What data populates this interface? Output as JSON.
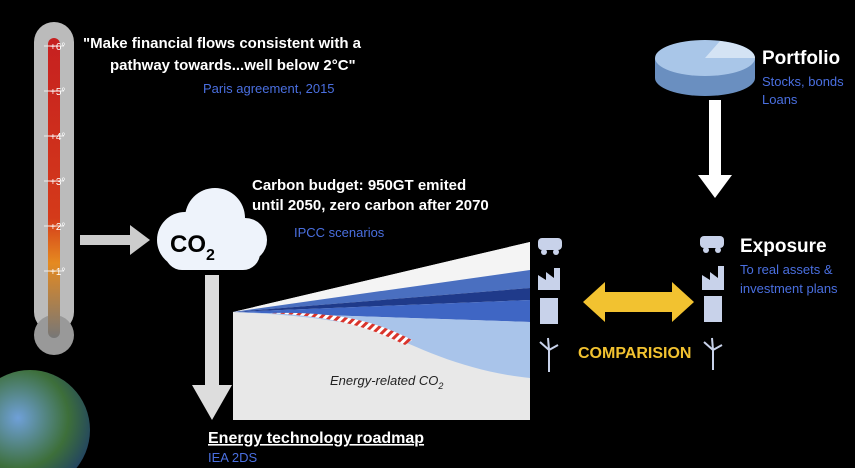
{
  "quote": {
    "lines": [
      "\"Make  financial flows consistent with a",
      "pathway towards...well below 2°C\""
    ],
    "source": "Paris agreement, 2015"
  },
  "thermometer": {
    "ticks": [
      "+6°",
      "+5°",
      "+4°",
      "+3°",
      "+2°",
      "+1°"
    ]
  },
  "carbon_budget": {
    "lines": [
      "Carbon budget: 950GT emited",
      "until 2050, zero carbon after 2070"
    ],
    "source": "IPCC scenarios"
  },
  "cloud": {
    "main": "CO",
    "sub": "2"
  },
  "portfolio": {
    "title": "Portfolio",
    "lines": [
      "Stocks, bonds",
      "Loans"
    ]
  },
  "exposure": {
    "title": "Exposure",
    "lines": [
      "To real assets &",
      "investment plans"
    ]
  },
  "comparison": "COMPARISION",
  "roadmap_chart": {
    "label": "Energy-related CO",
    "label_sub": "2"
  },
  "roadmap": {
    "title": "Energy technology roadmap",
    "source": "IEA 2DS"
  }
}
